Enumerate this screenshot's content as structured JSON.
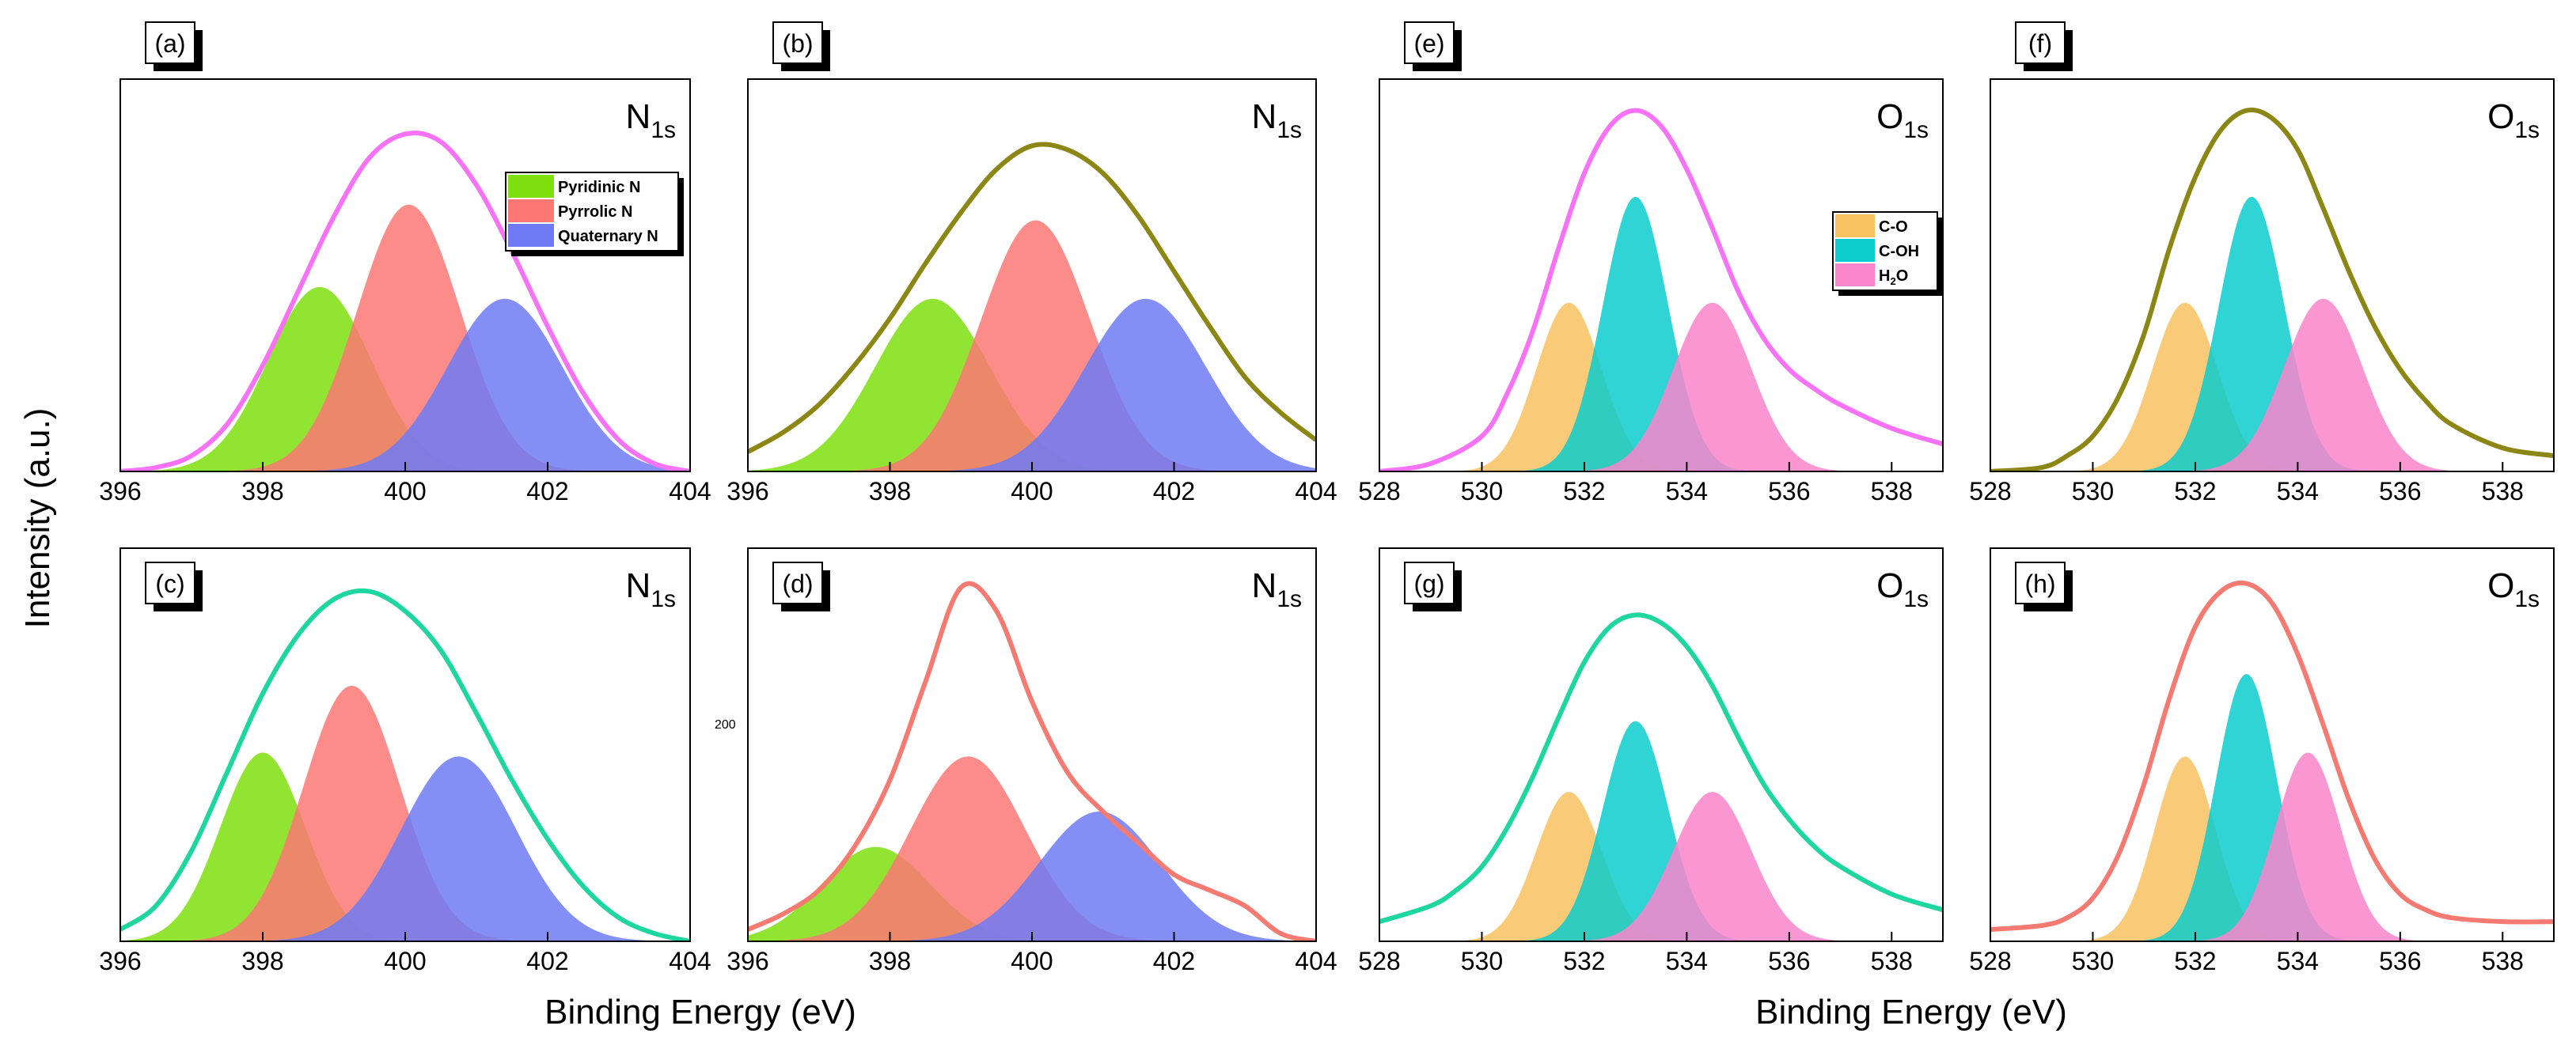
{
  "figure": {
    "ylabel": "Intensity (a.u.)",
    "xlabel": "Binding Energy (eV)"
  },
  "colors": {
    "pyridinic": "#7ee00e",
    "pyrrolic": "#fb7874",
    "quaternary": "#6e7bf5",
    "c_o": "#f8c261",
    "c_oh": "#0dcccc",
    "h2o": "#f985cb",
    "envelope_magenta": "#f772f7",
    "envelope_olive": "#8c8714",
    "envelope_teal": "#1ed6a0",
    "envelope_salmon": "#f57a72"
  },
  "chart_data": [
    {
      "type": "area",
      "tag": "(a)",
      "region": {
        "main": "N",
        "sub": "1s"
      },
      "xlim": [
        396,
        404
      ],
      "xticks": [
        396,
        398,
        400,
        402,
        404
      ],
      "ylim": [
        0,
        1.0
      ],
      "legend": {
        "placement": "top-right",
        "entries": [
          {
            "label": "Pyridinic N",
            "color": "#7ee00e"
          },
          {
            "label": "Pyrrolic N",
            "color": "#fb7874"
          },
          {
            "label": "Quaternary N",
            "color": "#6e7bf5"
          }
        ]
      },
      "envelope": {
        "color": "#f772f7",
        "points": [
          [
            396.0,
            0.0
          ],
          [
            396.5,
            0.01
          ],
          [
            397.0,
            0.04
          ],
          [
            397.5,
            0.12
          ],
          [
            398.0,
            0.27
          ],
          [
            398.5,
            0.46
          ],
          [
            399.0,
            0.65
          ],
          [
            399.5,
            0.8
          ],
          [
            400.0,
            0.86
          ],
          [
            400.5,
            0.84
          ],
          [
            401.0,
            0.73
          ],
          [
            401.5,
            0.56
          ],
          [
            402.0,
            0.37
          ],
          [
            402.5,
            0.2
          ],
          [
            403.0,
            0.08
          ],
          [
            403.5,
            0.02
          ],
          [
            404.0,
            0.0
          ]
        ]
      },
      "series": [
        {
          "name": "Pyridinic N",
          "color": "#7ee00e",
          "center": 398.8,
          "fwhm": 1.7,
          "height": 0.47
        },
        {
          "name": "Pyrrolic N",
          "color": "#fb7874",
          "center": 400.05,
          "fwhm": 1.7,
          "height": 0.68
        },
        {
          "name": "Quaternary N",
          "color": "#6e7bf5",
          "center": 401.4,
          "fwhm": 1.9,
          "height": 0.44
        }
      ]
    },
    {
      "type": "area",
      "tag": "(b)",
      "region": {
        "main": "N",
        "sub": "1s"
      },
      "xlim": [
        396,
        404
      ],
      "xticks": [
        396,
        398,
        400,
        402,
        404
      ],
      "ylim": [
        0,
        1.0
      ],
      "envelope": {
        "color": "#8c8714",
        "points": [
          [
            396.0,
            0.05
          ],
          [
            396.5,
            0.1
          ],
          [
            397.0,
            0.17
          ],
          [
            397.5,
            0.27
          ],
          [
            398.0,
            0.39
          ],
          [
            398.5,
            0.53
          ],
          [
            399.0,
            0.66
          ],
          [
            399.5,
            0.77
          ],
          [
            400.0,
            0.83
          ],
          [
            400.5,
            0.82
          ],
          [
            401.0,
            0.76
          ],
          [
            401.5,
            0.65
          ],
          [
            402.0,
            0.51
          ],
          [
            402.5,
            0.37
          ],
          [
            403.0,
            0.24
          ],
          [
            403.5,
            0.15
          ],
          [
            404.0,
            0.08
          ]
        ]
      },
      "series": [
        {
          "name": "Pyridinic N",
          "color": "#7ee00e",
          "center": 398.6,
          "fwhm": 1.9,
          "height": 0.44
        },
        {
          "name": "Pyrrolic N",
          "color": "#fb7874",
          "center": 400.05,
          "fwhm": 1.8,
          "height": 0.64
        },
        {
          "name": "Quaternary N",
          "color": "#6e7bf5",
          "center": 401.6,
          "fwhm": 2.0,
          "height": 0.44
        }
      ]
    },
    {
      "type": "area",
      "tag": "(e)",
      "region": {
        "main": "O",
        "sub": "1s"
      },
      "xlim": [
        528,
        539
      ],
      "xticks": [
        528,
        530,
        532,
        534,
        536,
        538
      ],
      "ylim": [
        0,
        1.0
      ],
      "legend": {
        "placement": "center",
        "entries": [
          {
            "label": "C-O",
            "color": "#f8c261"
          },
          {
            "label": "C-OH",
            "color": "#0dcccc"
          },
          {
            "label": "H2O",
            "color": "#f985cb",
            "main": "H",
            "sub": "2",
            "tail": "O"
          }
        ]
      },
      "envelope": {
        "color": "#f772f7",
        "points": [
          [
            528.0,
            0.0
          ],
          [
            529.0,
            0.02
          ],
          [
            530.0,
            0.09
          ],
          [
            530.5,
            0.2
          ],
          [
            531.0,
            0.36
          ],
          [
            531.5,
            0.57
          ],
          [
            532.0,
            0.76
          ],
          [
            532.5,
            0.88
          ],
          [
            533.0,
            0.92
          ],
          [
            533.5,
            0.88
          ],
          [
            534.0,
            0.77
          ],
          [
            534.5,
            0.62
          ],
          [
            535.0,
            0.46
          ],
          [
            535.5,
            0.34
          ],
          [
            536.0,
            0.26
          ],
          [
            536.5,
            0.21
          ],
          [
            537.0,
            0.17
          ],
          [
            538.0,
            0.11
          ],
          [
            539.0,
            0.07
          ]
        ]
      },
      "series": [
        {
          "name": "C-O",
          "color": "#f8c261",
          "center": 531.7,
          "fwhm": 1.5,
          "height": 0.43
        },
        {
          "name": "C-OH",
          "color": "#0dcccc",
          "center": 533.0,
          "fwhm": 1.5,
          "height": 0.7
        },
        {
          "name": "H2O",
          "color": "#f985cb",
          "center": 534.5,
          "fwhm": 1.8,
          "height": 0.43
        }
      ]
    },
    {
      "type": "area",
      "tag": "(f)",
      "region": {
        "main": "O",
        "sub": "1s"
      },
      "xlim": [
        528,
        539
      ],
      "xticks": [
        528,
        530,
        532,
        534,
        536,
        538
      ],
      "ylim": [
        0,
        1.0
      ],
      "envelope": {
        "color": "#8c8714",
        "points": [
          [
            528.0,
            0.0
          ],
          [
            529.0,
            0.01
          ],
          [
            529.5,
            0.04
          ],
          [
            530.0,
            0.09
          ],
          [
            530.5,
            0.19
          ],
          [
            531.0,
            0.35
          ],
          [
            531.5,
            0.57
          ],
          [
            532.0,
            0.75
          ],
          [
            532.5,
            0.87
          ],
          [
            533.0,
            0.92
          ],
          [
            533.5,
            0.9
          ],
          [
            534.0,
            0.82
          ],
          [
            534.5,
            0.67
          ],
          [
            535.0,
            0.51
          ],
          [
            535.5,
            0.37
          ],
          [
            536.0,
            0.26
          ],
          [
            536.5,
            0.18
          ],
          [
            537.0,
            0.12
          ],
          [
            538.0,
            0.06
          ],
          [
            539.0,
            0.04
          ]
        ]
      },
      "series": [
        {
          "name": "C-O",
          "color": "#f8c261",
          "center": 531.8,
          "fwhm": 1.5,
          "height": 0.43
        },
        {
          "name": "C-OH",
          "color": "#0dcccc",
          "center": 533.1,
          "fwhm": 1.5,
          "height": 0.7
        },
        {
          "name": "H2O",
          "color": "#f985cb",
          "center": 534.5,
          "fwhm": 1.8,
          "height": 0.44
        }
      ]
    },
    {
      "type": "area",
      "tag": "(c)",
      "region": {
        "main": "N",
        "sub": "1s"
      },
      "xlim": [
        396,
        404
      ],
      "xticks": [
        396,
        398,
        400,
        402,
        404
      ],
      "ylim": [
        0,
        1.0
      ],
      "envelope": {
        "color": "#1ed6a0",
        "points": [
          [
            396.0,
            0.03
          ],
          [
            396.5,
            0.09
          ],
          [
            397.0,
            0.23
          ],
          [
            397.5,
            0.43
          ],
          [
            398.0,
            0.63
          ],
          [
            398.5,
            0.78
          ],
          [
            399.0,
            0.87
          ],
          [
            399.5,
            0.89
          ],
          [
            400.0,
            0.84
          ],
          [
            400.5,
            0.74
          ],
          [
            401.0,
            0.58
          ],
          [
            401.5,
            0.41
          ],
          [
            402.0,
            0.26
          ],
          [
            402.5,
            0.14
          ],
          [
            403.0,
            0.06
          ],
          [
            403.5,
            0.02
          ],
          [
            404.0,
            0.0
          ]
        ]
      },
      "series": [
        {
          "name": "Pyridinic N",
          "color": "#7ee00e",
          "center": 398.0,
          "fwhm": 1.4,
          "height": 0.48
        },
        {
          "name": "Pyrrolic N",
          "color": "#fb7874",
          "center": 399.25,
          "fwhm": 1.6,
          "height": 0.65
        },
        {
          "name": "Quaternary N",
          "color": "#6e7bf5",
          "center": 400.75,
          "fwhm": 1.9,
          "height": 0.47
        }
      ]
    },
    {
      "type": "area",
      "tag": "(d)",
      "region": {
        "main": "N",
        "sub": "1s"
      },
      "stray_label": "200",
      "xlim": [
        396,
        404
      ],
      "xticks": [
        396,
        398,
        400,
        402,
        404
      ],
      "ylim": [
        0,
        1.0
      ],
      "envelope": {
        "color": "#f57a72",
        "points": [
          [
            396.0,
            0.03
          ],
          [
            396.5,
            0.07
          ],
          [
            397.0,
            0.13
          ],
          [
            397.5,
            0.24
          ],
          [
            398.0,
            0.41
          ],
          [
            398.5,
            0.66
          ],
          [
            399.0,
            0.9
          ],
          [
            399.5,
            0.84
          ],
          [
            400.0,
            0.61
          ],
          [
            400.5,
            0.43
          ],
          [
            401.0,
            0.33
          ],
          [
            401.5,
            0.25
          ],
          [
            402.0,
            0.17
          ],
          [
            402.5,
            0.13
          ],
          [
            403.0,
            0.09
          ],
          [
            403.5,
            0.02
          ],
          [
            404.0,
            0.0
          ]
        ]
      },
      "series": [
        {
          "name": "Pyridinic N",
          "color": "#7ee00e",
          "center": 397.8,
          "fwhm": 1.8,
          "height": 0.24
        },
        {
          "name": "Pyrrolic N",
          "color": "#fb7874",
          "center": 399.1,
          "fwhm": 1.9,
          "height": 0.47
        },
        {
          "name": "Quaternary N",
          "color": "#6e7bf5",
          "center": 400.95,
          "fwhm": 2.0,
          "height": 0.33
        }
      ]
    },
    {
      "type": "area",
      "tag": "(g)",
      "region": {
        "main": "O",
        "sub": "1s"
      },
      "xlim": [
        528,
        539
      ],
      "xticks": [
        528,
        530,
        532,
        534,
        536,
        538
      ],
      "ylim": [
        0,
        1.0
      ],
      "envelope": {
        "color": "#1ed6a0",
        "points": [
          [
            528.0,
            0.05
          ],
          [
            529.0,
            0.09
          ],
          [
            529.5,
            0.13
          ],
          [
            530.0,
            0.19
          ],
          [
            530.5,
            0.29
          ],
          [
            531.0,
            0.42
          ],
          [
            531.5,
            0.57
          ],
          [
            532.0,
            0.71
          ],
          [
            532.5,
            0.8
          ],
          [
            533.0,
            0.83
          ],
          [
            533.5,
            0.81
          ],
          [
            534.0,
            0.75
          ],
          [
            534.5,
            0.65
          ],
          [
            535.0,
            0.52
          ],
          [
            535.5,
            0.4
          ],
          [
            536.0,
            0.31
          ],
          [
            536.5,
            0.24
          ],
          [
            537.0,
            0.19
          ],
          [
            538.0,
            0.12
          ],
          [
            539.0,
            0.08
          ]
        ]
      },
      "series": [
        {
          "name": "C-O",
          "color": "#f8c261",
          "center": 531.7,
          "fwhm": 1.5,
          "height": 0.38
        },
        {
          "name": "C-OH",
          "color": "#0dcccc",
          "center": 533.0,
          "fwhm": 1.5,
          "height": 0.56
        },
        {
          "name": "H2O",
          "color": "#f985cb",
          "center": 534.5,
          "fwhm": 1.8,
          "height": 0.38
        }
      ]
    },
    {
      "type": "area",
      "tag": "(h)",
      "region": {
        "main": "O",
        "sub": "1s"
      },
      "xlim": [
        528,
        539
      ],
      "xticks": [
        528,
        530,
        532,
        534,
        536,
        538
      ],
      "ylim": [
        0,
        1.0
      ],
      "envelope": {
        "color": "#f57a72",
        "points": [
          [
            528.0,
            0.03
          ],
          [
            529.0,
            0.04
          ],
          [
            529.5,
            0.06
          ],
          [
            530.0,
            0.11
          ],
          [
            530.5,
            0.22
          ],
          [
            531.0,
            0.4
          ],
          [
            531.5,
            0.62
          ],
          [
            532.0,
            0.8
          ],
          [
            532.5,
            0.89
          ],
          [
            533.0,
            0.91
          ],
          [
            533.5,
            0.86
          ],
          [
            534.0,
            0.73
          ],
          [
            534.5,
            0.55
          ],
          [
            535.0,
            0.36
          ],
          [
            535.5,
            0.21
          ],
          [
            536.0,
            0.12
          ],
          [
            536.5,
            0.08
          ],
          [
            537.0,
            0.06
          ],
          [
            538.0,
            0.05
          ],
          [
            539.0,
            0.05
          ]
        ]
      },
      "series": [
        {
          "name": "C-O",
          "color": "#f8c261",
          "center": 531.8,
          "fwhm": 1.4,
          "height": 0.47
        },
        {
          "name": "C-OH",
          "color": "#0dcccc",
          "center": 533.0,
          "fwhm": 1.4,
          "height": 0.68
        },
        {
          "name": "H2O",
          "color": "#f985cb",
          "center": 534.2,
          "fwhm": 1.5,
          "height": 0.48
        }
      ]
    }
  ]
}
